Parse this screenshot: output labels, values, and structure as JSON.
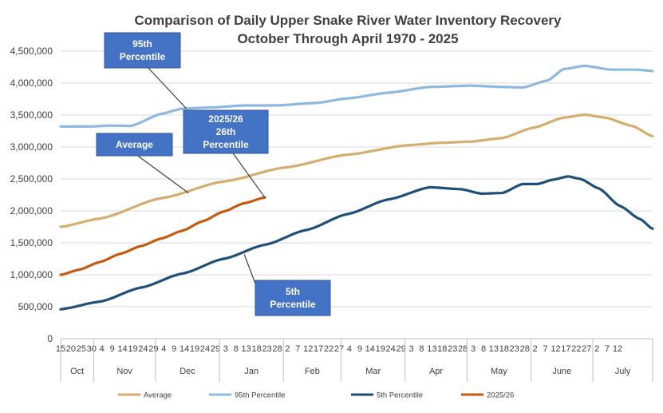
{
  "chart_data": {
    "type": "line",
    "title_lines": [
      "Comparison of Daily Upper Snake River Water Inventory Recovery",
      "October Through April 1970 - 2025"
    ],
    "ylim": [
      0,
      4500000
    ],
    "y_ticks": [
      "0",
      "500,000",
      "1,000,000",
      "1,500,000",
      "2,000,000",
      "2,500,000",
      "3,000,000",
      "3,500,000",
      "4,000,000",
      "4,500,000"
    ],
    "x_day_range": [
      1,
      288
    ],
    "day_labels": [
      {
        "day": 1,
        "text": "15"
      },
      {
        "day": 6,
        "text": "20"
      },
      {
        "day": 11,
        "text": "25"
      },
      {
        "day": 16,
        "text": "30"
      },
      {
        "day": 21,
        "text": "4"
      },
      {
        "day": 26,
        "text": "9"
      },
      {
        "day": 31,
        "text": "14"
      },
      {
        "day": 36,
        "text": "19"
      },
      {
        "day": 41,
        "text": "24"
      },
      {
        "day": 46,
        "text": "29"
      },
      {
        "day": 51,
        "text": "4"
      },
      {
        "day": 56,
        "text": "9"
      },
      {
        "day": 61,
        "text": "14"
      },
      {
        "day": 66,
        "text": "19"
      },
      {
        "day": 71,
        "text": "24"
      },
      {
        "day": 76,
        "text": "29"
      },
      {
        "day": 81,
        "text": "3"
      },
      {
        "day": 86,
        "text": "8"
      },
      {
        "day": 91,
        "text": "13"
      },
      {
        "day": 96,
        "text": "18"
      },
      {
        "day": 101,
        "text": "23"
      },
      {
        "day": 106,
        "text": "28"
      },
      {
        "day": 111,
        "text": "2"
      },
      {
        "day": 116,
        "text": "7"
      },
      {
        "day": 121,
        "text": "12"
      },
      {
        "day": 126,
        "text": "17"
      },
      {
        "day": 131,
        "text": "22"
      },
      {
        "day": 136,
        "text": "27"
      },
      {
        "day": 141,
        "text": "4"
      },
      {
        "day": 146,
        "text": "9"
      },
      {
        "day": 151,
        "text": "14"
      },
      {
        "day": 156,
        "text": "19"
      },
      {
        "day": 161,
        "text": "24"
      },
      {
        "day": 166,
        "text": "29"
      },
      {
        "day": 171,
        "text": "3"
      },
      {
        "day": 176,
        "text": "8"
      },
      {
        "day": 181,
        "text": "13"
      },
      {
        "day": 186,
        "text": "18"
      },
      {
        "day": 191,
        "text": "23"
      },
      {
        "day": 196,
        "text": "28"
      },
      {
        "day": 201,
        "text": "3"
      },
      {
        "day": 206,
        "text": "8"
      },
      {
        "day": 211,
        "text": "13"
      },
      {
        "day": 216,
        "text": "18"
      },
      {
        "day": 221,
        "text": "23"
      },
      {
        "day": 226,
        "text": "28"
      },
      {
        "day": 231,
        "text": "2"
      },
      {
        "day": 236,
        "text": "7"
      },
      {
        "day": 241,
        "text": "12"
      },
      {
        "day": 246,
        "text": "17"
      },
      {
        "day": 251,
        "text": "22"
      },
      {
        "day": 256,
        "text": "27"
      },
      {
        "day": 261,
        "text": "2"
      },
      {
        "day": 266,
        "text": "7"
      },
      {
        "day": 271,
        "text": "12"
      }
    ],
    "months": [
      {
        "label": "Oct",
        "start": 1,
        "end": 17
      },
      {
        "label": "Nov",
        "start": 17,
        "end": 47
      },
      {
        "label": "Dec",
        "start": 47,
        "end": 78
      },
      {
        "label": "Jan",
        "start": 78,
        "end": 109
      },
      {
        "label": "Feb",
        "start": 109,
        "end": 137
      },
      {
        "label": "Mar",
        "start": 137,
        "end": 168
      },
      {
        "label": "Apr",
        "start": 168,
        "end": 198
      },
      {
        "label": "May",
        "start": 198,
        "end": 229
      },
      {
        "label": "June",
        "start": 229,
        "end": 259
      },
      {
        "label": "July",
        "start": 259,
        "end": 288
      }
    ],
    "series": [
      {
        "name": "Average",
        "color": "#D4AE6F",
        "points": [
          [
            1,
            1750000
          ],
          [
            20,
            1880000
          ],
          [
            50,
            2200000
          ],
          [
            80,
            2460000
          ],
          [
            110,
            2680000
          ],
          [
            140,
            2880000
          ],
          [
            170,
            3030000
          ],
          [
            185,
            3065000
          ],
          [
            200,
            3085000
          ],
          [
            215,
            3140000
          ],
          [
            230,
            3300000
          ],
          [
            245,
            3460000
          ],
          [
            255,
            3505000
          ],
          [
            265,
            3460000
          ],
          [
            278,
            3330000
          ],
          [
            288,
            3170000
          ]
        ]
      },
      {
        "name": "95th Percentile",
        "color": "#8FB8DE",
        "points": [
          [
            1,
            3320000
          ],
          [
            15,
            3320000
          ],
          [
            25,
            3335000
          ],
          [
            35,
            3330000
          ],
          [
            50,
            3520000
          ],
          [
            60,
            3600000
          ],
          [
            75,
            3620000
          ],
          [
            90,
            3650000
          ],
          [
            105,
            3650000
          ],
          [
            125,
            3690000
          ],
          [
            140,
            3760000
          ],
          [
            160,
            3850000
          ],
          [
            180,
            3940000
          ],
          [
            200,
            3960000
          ],
          [
            215,
            3940000
          ],
          [
            225,
            3930000
          ],
          [
            237,
            4040000
          ],
          [
            245,
            4220000
          ],
          [
            255,
            4270000
          ],
          [
            268,
            4210000
          ],
          [
            280,
            4210000
          ],
          [
            288,
            4190000
          ]
        ]
      },
      {
        "name": "5th Percentile",
        "color": "#1F4E79",
        "points": [
          [
            1,
            460000
          ],
          [
            20,
            580000
          ],
          [
            40,
            800000
          ],
          [
            60,
            1020000
          ],
          [
            80,
            1250000
          ],
          [
            100,
            1470000
          ],
          [
            120,
            1700000
          ],
          [
            140,
            1950000
          ],
          [
            160,
            2180000
          ],
          [
            180,
            2370000
          ],
          [
            195,
            2340000
          ],
          [
            205,
            2270000
          ],
          [
            215,
            2280000
          ],
          [
            225,
            2420000
          ],
          [
            232,
            2420000
          ],
          [
            240,
            2490000
          ],
          [
            247,
            2540000
          ],
          [
            253,
            2500000
          ],
          [
            262,
            2350000
          ],
          [
            272,
            2080000
          ],
          [
            282,
            1870000
          ],
          [
            288,
            1720000
          ]
        ]
      },
      {
        "name": "2025/26",
        "color": "#C55A11",
        "points": [
          [
            1,
            1000000
          ],
          [
            10,
            1080000
          ],
          [
            20,
            1200000
          ],
          [
            30,
            1330000
          ],
          [
            40,
            1450000
          ],
          [
            50,
            1570000
          ],
          [
            60,
            1690000
          ],
          [
            70,
            1840000
          ],
          [
            80,
            1990000
          ],
          [
            90,
            2120000
          ],
          [
            100,
            2210000
          ]
        ]
      }
    ],
    "callouts": [
      {
        "lines": [
          "95th",
          "Percentile"
        ],
        "target_day": 62,
        "target_value": 3600000
      },
      {
        "lines": [
          "Average"
        ],
        "target_day": 63,
        "target_value": 2280000
      },
      {
        "lines": [
          "2025/26",
          "26th",
          "Percentile"
        ],
        "target_day": 100,
        "target_value": 2210000
      },
      {
        "lines": [
          "5th",
          "Percentile"
        ],
        "target_day": 90,
        "target_value": 1320000
      }
    ],
    "callout_color": "#4472C4",
    "legend": [
      "Average",
      "95th Percentile",
      "5th Percentile",
      "2025/26"
    ]
  }
}
